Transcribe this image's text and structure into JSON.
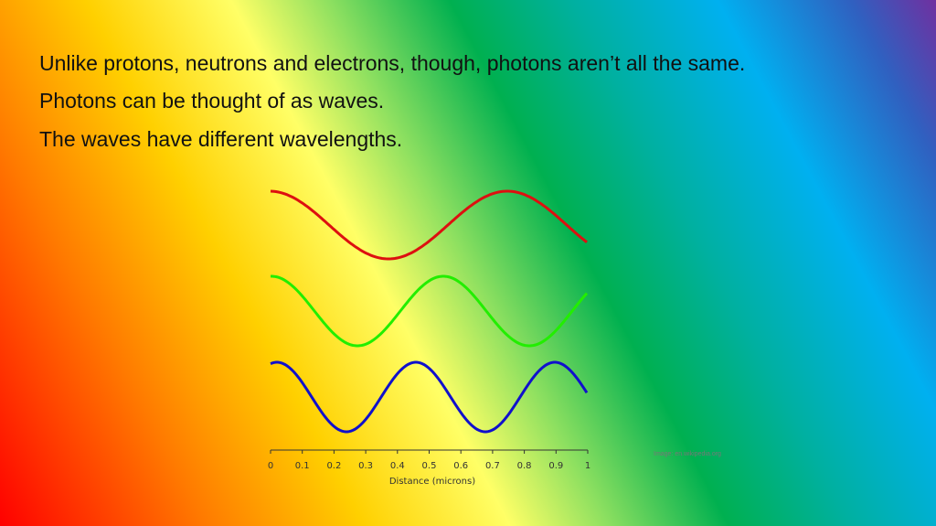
{
  "slide": {
    "lines": [
      "Unlike protons, neutrons and electrons, though, photons aren’t all the same.",
      "Photons can be thought of as waves.",
      "The waves have different wavelengths."
    ],
    "credit": "Image: en.wikipedia.org"
  },
  "chart_data": {
    "type": "line",
    "xlabel": "Distance (microns)",
    "xlim": [
      0,
      1
    ],
    "xticks": [
      0,
      0.1,
      0.2,
      0.3,
      0.4,
      0.5,
      0.6,
      0.7,
      0.8,
      0.9,
      1
    ]
  }
}
